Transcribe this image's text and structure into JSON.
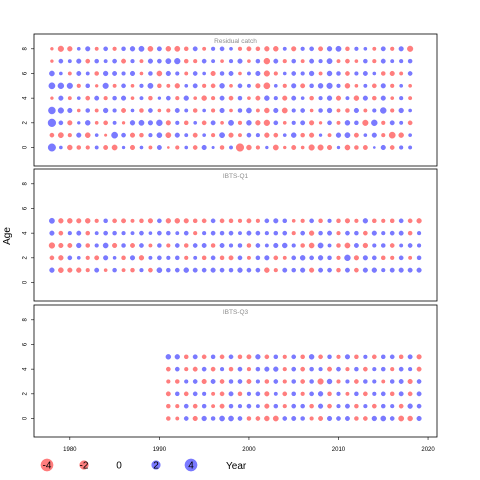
{
  "chart_data": {
    "type": "scatter",
    "ylabel": "Age",
    "xlabel": "Year",
    "xlim": [
      1976,
      2021
    ],
    "ylim": [
      -1.5,
      9.2
    ],
    "x_ticks": [
      1980,
      1990,
      2000,
      2010,
      2020
    ],
    "y_ticks": [
      0,
      2,
      4,
      6,
      8
    ],
    "colors": {
      "negative": "#ff7070",
      "positive": "#6b6bff"
    },
    "legend": {
      "values": [
        -4,
        -2,
        0,
        2,
        4
      ],
      "labels": [
        "-4",
        "-2",
        "0",
        "2",
        "4"
      ]
    },
    "panels": [
      {
        "title": "Residual catch",
        "years": [
          1978,
          2018
        ],
        "ages": [
          0,
          1,
          2,
          3,
          4,
          5,
          6,
          7,
          8
        ],
        "residuals": [
          [
            3.2,
            0.6,
            -1.4,
            -0.9,
            -0.8,
            0.7,
            -1.1,
            -1.6,
            0.5,
            -1.2,
            0.6,
            -0.7,
            1.1,
            -0.3,
            -0.8,
            0.6,
            -1.0,
            1.2,
            0.4,
            -0.9,
            0.7,
            -3.3,
            -1.4,
            -0.8,
            0.5,
            -1.6,
            -0.5,
            -1.1,
            -0.6,
            -1.8,
            -1.7,
            -1.2,
            0.5,
            -1.5,
            -0.9,
            -1.1,
            0.3,
            1.2,
            -1.0,
            0.8,
            0.7
          ],
          [
            -1.0,
            -1.6,
            -0.8,
            1.2,
            -1.5,
            0.6,
            -0.4,
            2.2,
            1.0,
            -1.2,
            -0.9,
            0.8,
            1.5,
            -1.6,
            1.2,
            0.7,
            -1.1,
            0.6,
            -0.8,
            1.6,
            -1.2,
            -0.7,
            1.0,
            0.8,
            -1.3,
            -1.0,
            0.6,
            1.4,
            -0.9,
            -1.2,
            0.5,
            -0.7,
            1.3,
            1.6,
            -1.1,
            0.6,
            1.2,
            -0.8,
            -2.2,
            -1.4,
            0.6
          ],
          [
            3.4,
            1.0,
            -1.2,
            0.5,
            1.4,
            -0.6,
            -1.0,
            0.7,
            -0.5,
            1.3,
            1.6,
            1.2,
            2.0,
            -1.2,
            0.8,
            -0.9,
            0.6,
            -1.0,
            1.1,
            -0.6,
            1.6,
            -0.8,
            1.4,
            -1.3,
            -1.9,
            1.0,
            -0.6,
            0.8,
            1.1,
            -1.2,
            -0.5,
            1.0,
            -0.7,
            1.4,
            0.9,
            -1.8,
            2.0,
            -0.8,
            1.1,
            0.7,
            -1.0
          ],
          [
            2.8,
            1.8,
            1.2,
            -0.6,
            0.9,
            -0.7,
            1.3,
            0.8,
            -1.1,
            0.6,
            -0.9,
            1.0,
            -0.6,
            -0.8,
            1.1,
            0.7,
            -0.9,
            0.6,
            -0.8,
            1.2,
            -0.6,
            0.9,
            1.5,
            -0.7,
            -1.4,
            1.2,
            -1.6,
            0.8,
            1.0,
            -0.6,
            0.9,
            1.3,
            -0.7,
            -0.9,
            1.2,
            -0.7,
            0.8,
            2.0,
            -0.8,
            1.3,
            0.6
          ],
          [
            -0.5,
            1.2,
            -0.7,
            0.6,
            -1.0,
            1.1,
            -0.8,
            0.9,
            1.2,
            -0.6,
            0.7,
            -0.9,
            0.5,
            1.0,
            -0.8,
            1.3,
            -0.6,
            -1.4,
            -0.8,
            1.1,
            -1.0,
            0.9,
            -0.6,
            -1.1,
            1.4,
            0.8,
            -1.2,
            1.1,
            0.6,
            -0.9,
            0.8,
            1.3,
            -1.2,
            0.7,
            -1.4,
            1.2,
            -0.9,
            1.2,
            -0.6,
            0.8,
            -0.7
          ],
          [
            2.2,
            2.0,
            1.8,
            -0.8,
            0.9,
            -0.5,
            1.8,
            -0.7,
            1.0,
            -0.6,
            0.8,
            1.6,
            -0.9,
            -0.7,
            -1.3,
            0.6,
            1.1,
            -0.8,
            -1.0,
            1.4,
            -0.6,
            1.0,
            0.7,
            -1.2,
            -2.2,
            0.6,
            -0.8,
            1.2,
            -1.1,
            0.9,
            1.4,
            1.8,
            0.8,
            -1.4,
            -0.6,
            0.7,
            -1.0,
            1.2,
            -0.8,
            0.6,
            -0.6
          ],
          [
            1.5,
            0.6,
            -0.7,
            1.1,
            0.7,
            -0.9,
            1.3,
            1.1,
            0.8,
            1.2,
            -0.6,
            0.9,
            -1.5,
            1.2,
            0.8,
            -0.7,
            1.0,
            0.6,
            -1.2,
            0.9,
            1.1,
            -0.6,
            0.7,
            1.2,
            -1.8,
            -0.8,
            0.6,
            1.0,
            0.8,
            1.3,
            -0.7,
            1.4,
            0.9,
            -1.0,
            0.8,
            1.1,
            0.6,
            -0.9,
            -1.2,
            -0.7,
            1.0
          ],
          [
            -0.5,
            1.0,
            0.7,
            1.2,
            -1.0,
            0.9,
            0.7,
            1.0,
            -1.1,
            0.8,
            -0.7,
            1.2,
            1.0,
            1.6,
            1.9,
            -0.9,
            -0.8,
            1.0,
            0.7,
            -0.6,
            0.8,
            1.2,
            -0.6,
            0.9,
            -2.0,
            1.1,
            -0.8,
            0.9,
            -0.7,
            1.1,
            0.8,
            1.6,
            -0.7,
            -1.0,
            -0.6,
            0.9,
            -0.8,
            1.1,
            0.7,
            0.8,
            0.9
          ],
          [
            -0.5,
            -1.8,
            -1.3,
            0.6,
            1.2,
            -0.7,
            1.0,
            -0.8,
            0.9,
            1.3,
            1.6,
            -1.5,
            1.1,
            -1.4,
            -1.6,
            -0.9,
            1.1,
            -0.7,
            0.8,
            1.0,
            0.6,
            -0.8,
            -1.1,
            -0.9,
            -1.3,
            -1.4,
            0.7,
            -1.2,
            0.8,
            1.0,
            -1.1,
            1.3,
            1.6,
            -0.9,
            0.8,
            0.6,
            -0.7,
            1.1,
            -0.8,
            1.2,
            -1.8
          ]
        ]
      },
      {
        "title": "IBTS-Q1",
        "years": [
          1978,
          2019
        ],
        "ages": [
          1,
          2,
          3,
          4,
          5
        ],
        "residuals": [
          [
            1.3,
            -1.5,
            -1.2,
            -1.3,
            -0.8,
            1.1,
            -0.6,
            0.9,
            -0.7,
            -0.9,
            0.8,
            -1.0,
            1.5,
            0.9,
            1.0,
            1.4,
            1.1,
            1.0,
            1.2,
            1.0,
            0.9,
            1.3,
            1.0,
            1.0,
            -1.4,
            -0.8,
            1.1,
            0.9,
            1.2,
            -1.2,
            1.1,
            1.0,
            -0.9,
            1.1,
            -1.0,
            1.2,
            1.3,
            0.8,
            1.1,
            1.2,
            1.1,
            1.2
          ],
          [
            -1.0,
            -1.3,
            1.0,
            0.6,
            -0.8,
            -1.1,
            1.2,
            0.6,
            -0.9,
            1.2,
            -1.3,
            0.7,
            1.0,
            0.8,
            0.9,
            -0.8,
            0.7,
            -0.9,
            1.0,
            -0.9,
            -1.1,
            1.0,
            -0.7,
            0.9,
            1.2,
            -1.0,
            -0.7,
            1.0,
            1.4,
            1.0,
            1.3,
            0.9,
            -0.8,
            2.0,
            -1.2,
            1.2,
            1.0,
            -0.9,
            -0.8,
            1.0,
            -0.7,
            0.9
          ],
          [
            -1.9,
            -1.2,
            -1.1,
            1.3,
            -0.9,
            0.8,
            1.5,
            -1.2,
            0.9,
            -1.1,
            1.0,
            -0.7,
            0.9,
            -0.8,
            1.0,
            -0.9,
            1.0,
            1.1,
            -0.9,
            1.1,
            0.8,
            0.9,
            -0.9,
            1.0,
            0.7,
            1.2,
            1.4,
            0.8,
            -0.9,
            -1.5,
            1.6,
            0.7,
            -0.9,
            -1.6,
            1.1,
            -1.3,
            0.8,
            0.9,
            -1.0,
            0.7,
            1.0,
            0.8
          ],
          [
            1.2,
            -1.0,
            0.8,
            1.1,
            -0.9,
            0.7,
            1.0,
            0.9,
            0.8,
            0.7,
            1.0,
            0.6,
            1.0,
            0.9,
            0.7,
            1.0,
            -0.8,
            0.8,
            1.0,
            0.9,
            1.0,
            0.7,
            1.1,
            1.0,
            0.8,
            0.9,
            1.0,
            -0.8,
            1.0,
            -1.3,
            0.9,
            1.1,
            -0.8,
            1.0,
            0.9,
            -1.0,
            1.2,
            0.8,
            1.0,
            1.1,
            -0.9,
            0.8
          ],
          [
            1.6,
            -1.3,
            -1.4,
            -1.2,
            -1.4,
            -0.8,
            0.9,
            -1.0,
            -1.1,
            -0.7,
            -0.9,
            -1.2,
            1.0,
            -1.3,
            -1.4,
            -1.2,
            -0.9,
            -1.0,
            1.0,
            -1.0,
            -0.9,
            -0.8,
            -1.1,
            -0.8,
            1.0,
            1.2,
            0.9,
            -0.6,
            -0.8,
            1.0,
            -0.9,
            0.8,
            -0.9,
            -1.2,
            -0.8,
            1.3,
            -0.9,
            -0.8,
            -0.9,
            1.0,
            -1.0,
            -1.3
          ]
        ]
      },
      {
        "title": "IBTS-Q3",
        "years": [
          1991,
          2019
        ],
        "ages": [
          0,
          1,
          2,
          3,
          4,
          5
        ],
        "residuals": [
          [
            -0.9,
            -0.7,
            1.0,
            -1.2,
            1.3,
            0.9,
            1.5,
            1.5,
            1.0,
            -0.9,
            -1.0,
            -1.4,
            -1.6,
            1.0,
            1.1,
            0.9,
            -0.8,
            -1.1,
            1.2,
            1.0,
            1.1,
            -0.9,
            -1.0,
            1.3,
            1.5,
            1.0,
            -1.6,
            -1.4,
            1.2
          ],
          [
            -0.9,
            -0.8,
            1.0,
            -1.0,
            0.9,
            -0.7,
            -1.1,
            0.9,
            0.8,
            1.0,
            0.7,
            -1.2,
            0.9,
            -0.8,
            1.0,
            0.9,
            -0.9,
            1.2,
            -1.0,
            0.8,
            1.1,
            -0.9,
            0.8,
            -1.0,
            0.9,
            0.8,
            -1.0,
            1.3,
            1.0
          ],
          [
            -1.1,
            0.9,
            -1.0,
            1.0,
            0.8,
            -0.7,
            -1.0,
            1.1,
            -0.9,
            0.8,
            1.0,
            -1.2,
            0.7,
            -1.0,
            0.9,
            -0.8,
            1.0,
            1.3,
            -0.9,
            0.8,
            -0.7,
            0.9,
            -1.0,
            0.8,
            1.0,
            -0.9,
            1.1,
            -1.0,
            1.1
          ],
          [
            -0.8,
            -0.9,
            0.8,
            1.0,
            -1.2,
            1.1,
            -1.0,
            0.9,
            1.0,
            -1.1,
            0.8,
            -0.9,
            1.0,
            -0.8,
            0.9,
            -1.0,
            0.9,
            -1.8,
            1.4,
            -0.8,
            0.8,
            -1.0,
            0.9,
            0.8,
            -0.7,
            0.9,
            1.1,
            -1.2,
            1.0
          ],
          [
            -1.0,
            1.0,
            -0.8,
            -1.1,
            1.0,
            -1.0,
            0.8,
            -0.9,
            1.0,
            -0.8,
            0.9,
            1.2,
            1.3,
            -0.8,
            1.0,
            -1.0,
            0.9,
            0.8,
            -1.1,
            1.0,
            -0.8,
            0.9,
            -1.0,
            0.8,
            0.9,
            -0.8,
            1.0,
            0.8,
            -1.1
          ],
          [
            1.4,
            1.3,
            -0.9,
            1.1,
            -1.0,
            0.9,
            -1.0,
            1.0,
            -0.9,
            -1.1,
            1.3,
            -1.0,
            0.9,
            -0.8,
            1.0,
            -0.9,
            1.4,
            -1.0,
            0.9,
            -0.8,
            1.2,
            -0.9,
            0.8,
            -1.0,
            0.9,
            1.0,
            -0.9,
            1.1,
            -1.2
          ]
        ]
      }
    ]
  }
}
